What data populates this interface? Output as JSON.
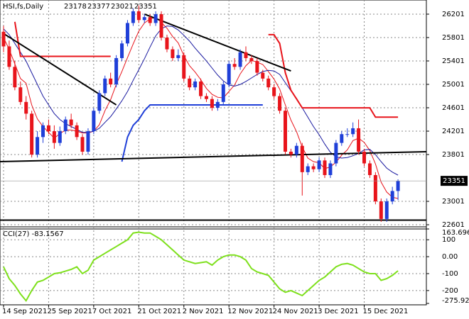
{
  "chart_data": [
    {
      "type": "candlestick",
      "title": "HSI,fs,Daily",
      "categories": [
        "14 Sep 2021",
        null,
        null,
        null,
        null,
        null,
        null,
        null,
        "25 Sep 2021",
        null,
        null,
        null,
        null,
        null,
        null,
        null,
        "7 Oct 2021",
        null,
        null,
        null,
        null,
        null,
        null,
        null,
        "21 Oct 2021",
        null,
        null,
        null,
        null,
        null,
        null,
        null,
        "2 Nov 2021",
        null,
        null,
        null,
        null,
        null,
        null,
        null,
        "12 Nov 2021",
        null,
        null,
        null,
        null,
        null,
        null,
        null,
        "24 Nov 2021",
        null,
        null,
        null,
        null,
        null,
        null,
        null,
        "3 Dec 2021",
        null,
        null,
        null,
        null,
        null,
        null,
        null,
        "15 Dec 2021",
        null,
        null,
        null,
        null,
        null,
        null
      ],
      "open": [
        25900,
        25650,
        25300,
        24950,
        24700,
        24500,
        23800,
        24100,
        24300,
        24200,
        24000,
        24200,
        24400,
        24300,
        24100,
        23850,
        24200,
        24550,
        24850,
        25100,
        25000,
        25450,
        25700,
        26050,
        26250,
        26100,
        26150,
        26050,
        26200,
        25800,
        25600,
        25450,
        25500,
        25100,
        24950,
        25050,
        24800,
        24750,
        24600,
        24700,
        25000,
        25350,
        25300,
        25550,
        25450,
        25400,
        25200,
        25100,
        24950,
        24800,
        24550,
        23850,
        23800,
        23950,
        23500,
        23600,
        23550,
        23700,
        23450,
        23650,
        24000,
        24150,
        24150,
        24250,
        23850,
        23650,
        23450,
        23000,
        22700,
        23000,
        23178
      ],
      "high": [
        26000,
        25750,
        25400,
        25050,
        24800,
        24550,
        24200,
        24350,
        24400,
        24300,
        24280,
        24450,
        24500,
        24350,
        24150,
        24250,
        24600,
        24900,
        25150,
        25200,
        25500,
        25750,
        26100,
        26300,
        26350,
        26200,
        26200,
        26250,
        26250,
        25850,
        25650,
        25600,
        25550,
        25150,
        25100,
        25100,
        24850,
        24800,
        24750,
        25050,
        25400,
        25450,
        25600,
        25650,
        25500,
        25450,
        25250,
        25150,
        25000,
        24850,
        24600,
        23900,
        24000,
        24000,
        23650,
        23650,
        23750,
        23750,
        23700,
        24050,
        24200,
        24250,
        24350,
        24400,
        23900,
        23700,
        23500,
        23050,
        23050,
        23250,
        23377
      ],
      "low": [
        25550,
        25250,
        24900,
        24650,
        24400,
        23750,
        23750,
        24000,
        24150,
        23900,
        23950,
        24150,
        24250,
        24050,
        23800,
        23800,
        24150,
        24500,
        24800,
        24950,
        24950,
        25400,
        25650,
        26000,
        26050,
        26050,
        26000,
        26000,
        25750,
        25550,
        25400,
        25400,
        25050,
        24900,
        24900,
        24750,
        24700,
        24550,
        24550,
        24650,
        24950,
        25250,
        25250,
        25400,
        25350,
        25150,
        25050,
        24900,
        24750,
        24500,
        23800,
        23750,
        23750,
        23100,
        23450,
        23500,
        23500,
        23400,
        23400,
        23600,
        23950,
        24100,
        24100,
        23800,
        23600,
        23400,
        22950,
        22650,
        22650,
        22950,
        23021
      ],
      "close": [
        25650,
        25300,
        24950,
        24700,
        24500,
        23800,
        24100,
        24300,
        24200,
        24000,
        24200,
        24400,
        24300,
        24100,
        23850,
        24200,
        24550,
        24850,
        25100,
        25000,
        25450,
        25700,
        26050,
        26250,
        26100,
        26150,
        26050,
        26200,
        25800,
        25600,
        25450,
        25500,
        25100,
        24950,
        25050,
        24800,
        24750,
        24600,
        24700,
        25000,
        25350,
        25300,
        25550,
        25450,
        25400,
        25200,
        25100,
        24950,
        24800,
        24550,
        23850,
        23800,
        23950,
        23500,
        23600,
        23550,
        23700,
        23450,
        23650,
        24000,
        24150,
        24150,
        24250,
        23850,
        23650,
        23450,
        23000,
        22700,
        23000,
        23178,
        23351
      ],
      "up_color": "#1f3fd8",
      "down_color": "#e8141b",
      "ylim": [
        22565,
        26443
      ],
      "yticks": [
        22601,
        23001,
        23801,
        24201,
        24601,
        25001,
        25401,
        25801,
        26201
      ],
      "grid": true,
      "series": [
        {
          "color": "#e8141b",
          "values": [
            25800,
            25600,
            25350,
            25100,
            25020,
            24650,
            24410,
            24280,
            24180,
            24080,
            24160,
            24220,
            24220,
            24200,
            24170,
            24170,
            24200,
            24310,
            24550,
            24740,
            25000,
            25220,
            25460,
            25690,
            25910,
            26050,
            26120,
            26150,
            26060,
            25960,
            25820,
            25710,
            25490,
            25320,
            25210,
            25080,
            24930,
            24830,
            24780,
            24770,
            24880,
            24990,
            25180,
            25320,
            25410,
            25380,
            25340,
            25220,
            25090,
            24920,
            24650,
            24390,
            24190,
            23930,
            23740,
            23680,
            23660,
            23560,
            23590,
            23670,
            23790,
            23880,
            24040,
            24080,
            24010,
            23870,
            23640,
            23330,
            23160,
            23070,
            23050
          ]
        },
        {
          "color": "#1a1aa0",
          "values": [
            25950,
            25850,
            25700,
            25550,
            25400,
            25200,
            25000,
            24800,
            24650,
            24500,
            24400,
            24330,
            24280,
            24230,
            24180,
            24180,
            24200,
            24250,
            24350,
            24450,
            24580,
            24720,
            24880,
            25070,
            25250,
            25440,
            25640,
            25830,
            25950,
            26000,
            25990,
            25930,
            25840,
            25740,
            25620,
            25510,
            25400,
            25280,
            25160,
            25060,
            24990,
            24970,
            25000,
            25050,
            25110,
            25170,
            25220,
            25240,
            25230,
            25170,
            25030,
            24890,
            24760,
            24600,
            24440,
            24280,
            24140,
            23980,
            23840,
            23760,
            23740,
            23750,
            23780,
            23820,
            23880,
            23890,
            23800,
            23680,
            23570,
            23500,
            23450
          ]
        },
        {
          "color": "#e8141b",
          "width": 2,
          "values": [
            null,
            null,
            26070,
            25480,
            25480,
            25480,
            25480,
            25480,
            25480,
            25480,
            25480,
            25480,
            25480,
            25480,
            25480,
            25480,
            25480,
            25480,
            25480,
            25480,
            null,
            null,
            null,
            null,
            null,
            null,
            null,
            null,
            null,
            null,
            null,
            null,
            null,
            null,
            null,
            null,
            null,
            null,
            null,
            null,
            null,
            null,
            null,
            null,
            null,
            null,
            null,
            25850,
            25850,
            25700,
            25200,
            24900,
            24750,
            24600,
            24600,
            24600,
            24600,
            24600,
            24600,
            24600,
            24600,
            24600,
            24600,
            24600,
            24600,
            24600,
            24440,
            24440,
            24440,
            24440,
            24440
          ]
        },
        {
          "color": "#1f3fd8",
          "width": 2,
          "values": [
            null,
            null,
            null,
            null,
            null,
            null,
            null,
            null,
            null,
            null,
            null,
            null,
            null,
            null,
            null,
            null,
            null,
            null,
            null,
            null,
            null,
            23680,
            24100,
            24300,
            24400,
            24550,
            24650,
            24650,
            24650,
            24650,
            24650,
            24650,
            24650,
            24650,
            24650,
            24650,
            24650,
            24650,
            24650,
            24650,
            24650,
            24650,
            24650,
            24650,
            24650,
            24650,
            24650,
            null,
            null,
            null,
            null,
            null,
            null,
            null,
            null,
            null,
            null,
            null,
            null,
            null,
            null,
            null,
            null,
            null,
            null,
            null,
            null,
            null,
            null,
            null,
            null
          ]
        }
      ],
      "trendlines": [
        {
          "color": "#000000",
          "from": [
            0,
            25870
          ],
          "to": [
            20,
            24650
          ]
        },
        {
          "color": "#000000",
          "from": [
            25,
            26201
          ],
          "to": [
            51,
            25230
          ]
        },
        {
          "color": "#000000",
          "from": [
            -1,
            23680
          ],
          "to": [
            75,
            23850
          ]
        },
        {
          "color": "#000000",
          "from": [
            -1,
            22680
          ],
          "to": [
            75,
            22680
          ]
        }
      ]
    },
    {
      "type": "line",
      "title": "CCI(27) -83.1567",
      "color": "#7ee01c",
      "values": [
        -60,
        -130,
        -170,
        -220,
        -260,
        -200,
        -150,
        -140,
        -120,
        -100,
        -95,
        -85,
        -75,
        -60,
        -100,
        -80,
        -20,
        0,
        20,
        40,
        60,
        80,
        100,
        140,
        145,
        140,
        140,
        120,
        100,
        70,
        40,
        10,
        -20,
        -30,
        -40,
        -35,
        -30,
        -50,
        -20,
        0,
        10,
        10,
        0,
        -20,
        -70,
        -90,
        -100,
        -110,
        -150,
        -190,
        -210,
        -200,
        -215,
        -230,
        -200,
        -170,
        -140,
        -120,
        -90,
        -60,
        -45,
        -40,
        -50,
        -70,
        -90,
        -100,
        -100,
        -140,
        -130,
        -110,
        -83.1567
      ],
      "ylim": [
        -275.9246,
        163.6968
      ],
      "yticks": [
        -275.9246,
        -200,
        -100,
        {
          "value": 0,
          "label": "0.00"
        },
        100,
        163.6968
      ],
      "grid": true
    }
  ]
}
